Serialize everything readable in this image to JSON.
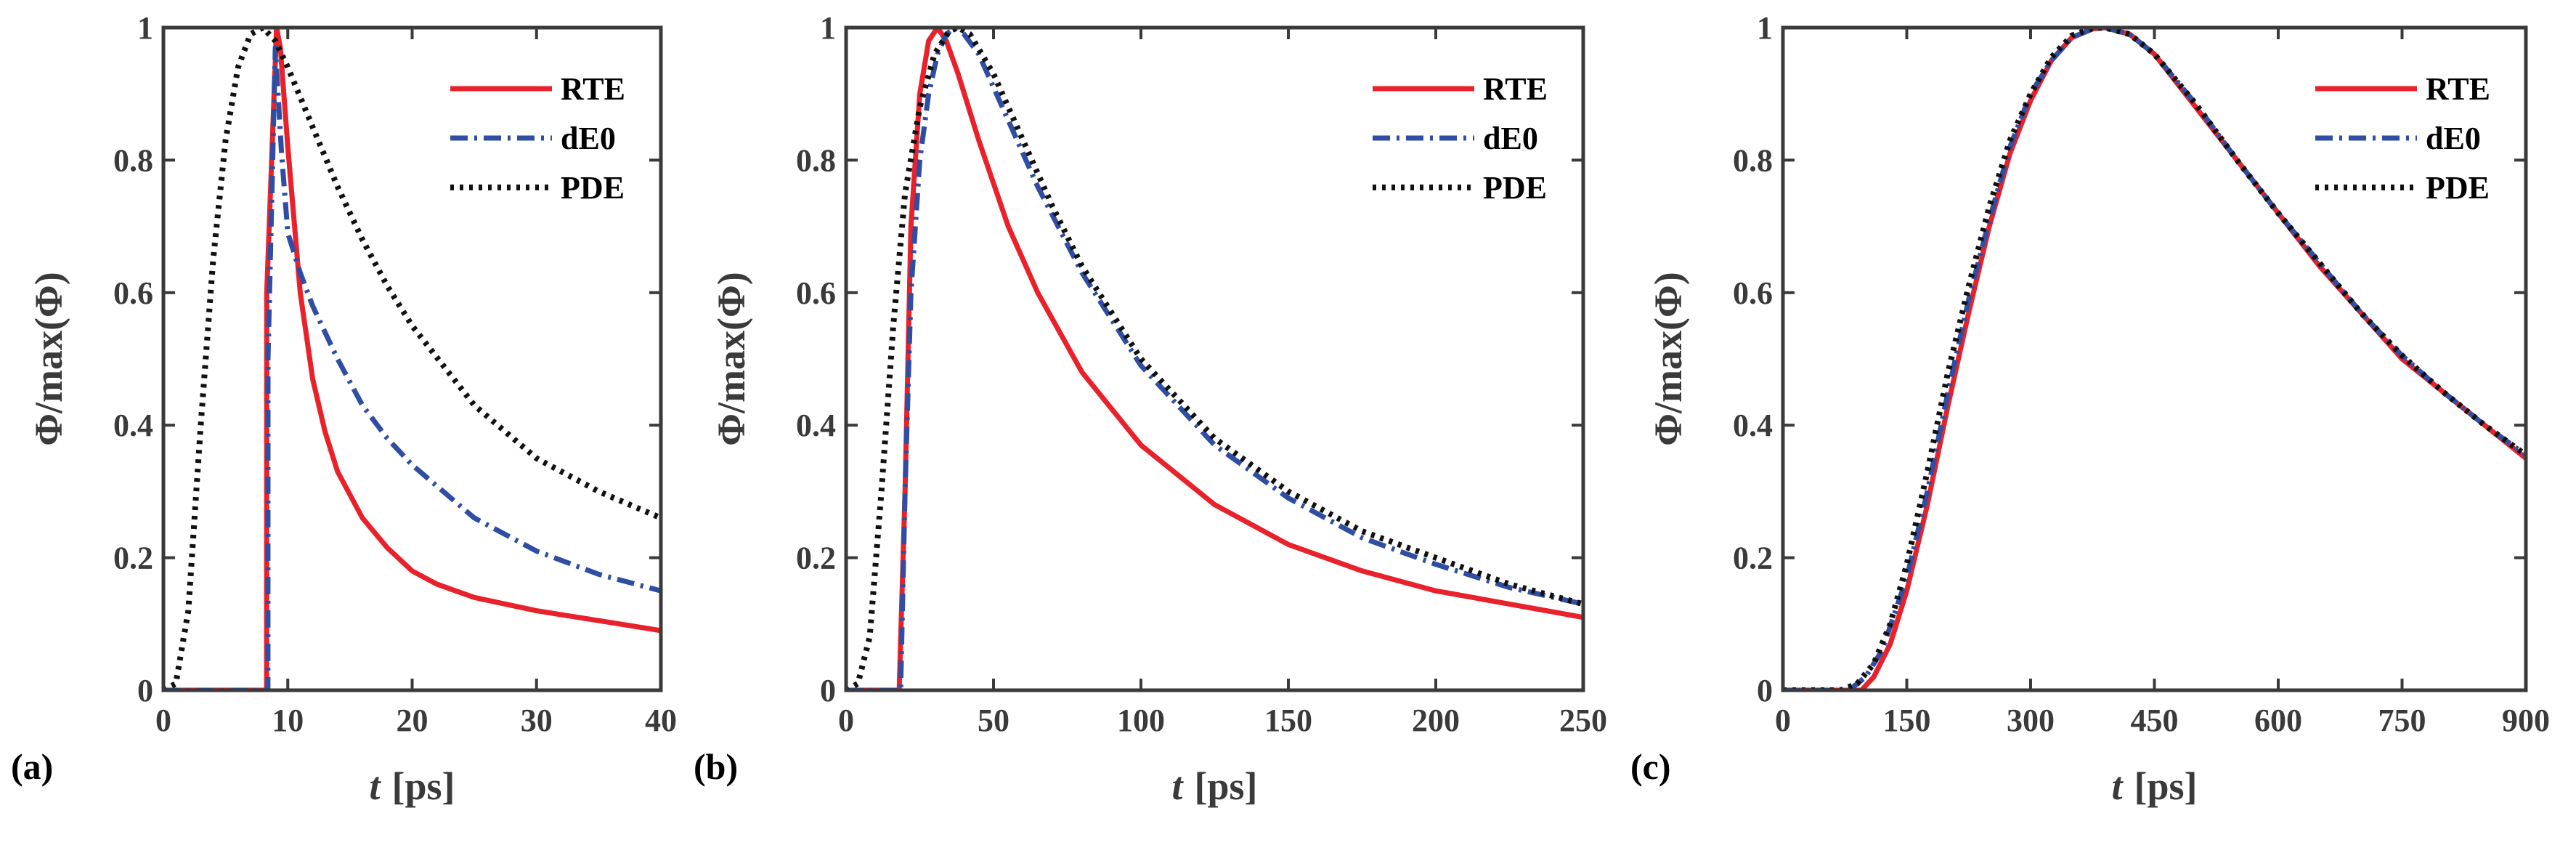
{
  "colors": {
    "RTE": "#e8212b",
    "dE0": "#2f4ea3",
    "PDE": "#111111",
    "axis": "#3a3a3a"
  },
  "chart_data": [
    {
      "type": "line",
      "panel_label": "(a)",
      "xlabel_var": "t",
      "xlabel_unit": "[ps]",
      "ylabel": "Φ/max(Φ)",
      "xlim": [
        0,
        40
      ],
      "ylim": [
        0,
        1
      ],
      "xticks": [
        0,
        10,
        20,
        30,
        40
      ],
      "yticks": [
        0,
        0.2,
        0.4,
        0.6,
        0.8,
        1
      ],
      "ytick_labels": [
        "0",
        "0.2",
        "0.4",
        "0.6",
        "0.8",
        "1"
      ],
      "legend_position": "top-right",
      "series": [
        {
          "name": "RTE",
          "style": "solid",
          "x": [
            0,
            8.3,
            8.31,
            9.1,
            9.4,
            10,
            11,
            12,
            13,
            14,
            16,
            18,
            20,
            22,
            25,
            30,
            35,
            40
          ],
          "y": [
            0,
            0,
            0.6,
            1.0,
            0.97,
            0.82,
            0.6,
            0.47,
            0.39,
            0.33,
            0.26,
            0.215,
            0.18,
            0.16,
            0.14,
            0.12,
            0.105,
            0.09
          ]
        },
        {
          "name": "dE0",
          "style": "dashdot",
          "x": [
            0,
            8.4,
            8.41,
            9.0,
            9.5,
            10,
            11,
            12,
            14,
            16,
            18,
            20,
            25,
            30,
            35,
            40
          ],
          "y": [
            0,
            0,
            0.5,
            0.97,
            0.81,
            0.69,
            0.63,
            0.58,
            0.5,
            0.43,
            0.38,
            0.34,
            0.26,
            0.21,
            0.175,
            0.15
          ]
        },
        {
          "name": "PDE",
          "style": "dotted",
          "x": [
            0,
            1,
            2,
            3,
            4,
            5,
            6,
            7,
            8,
            9,
            10,
            12,
            14,
            16,
            18,
            20,
            25,
            30,
            35,
            40
          ],
          "y": [
            0,
            0.01,
            0.12,
            0.4,
            0.65,
            0.83,
            0.94,
            0.99,
            1.0,
            0.98,
            0.94,
            0.85,
            0.76,
            0.68,
            0.61,
            0.55,
            0.43,
            0.35,
            0.3,
            0.26
          ]
        }
      ]
    },
    {
      "type": "line",
      "panel_label": "(b)",
      "xlabel_var": "t",
      "xlabel_unit": "[ps]",
      "ylabel": "Φ/max(Φ)",
      "xlim": [
        0,
        250
      ],
      "ylim": [
        0,
        1
      ],
      "xticks": [
        0,
        50,
        100,
        150,
        200,
        250
      ],
      "yticks": [
        0,
        0.2,
        0.4,
        0.6,
        0.8,
        1
      ],
      "ytick_labels": [
        "0",
        "0.2",
        "0.4",
        "0.6",
        "0.8",
        "1"
      ],
      "legend_position": "top-right",
      "series": [
        {
          "name": "RTE",
          "style": "solid",
          "x": [
            0,
            18,
            20,
            22,
            25,
            28,
            31,
            34,
            38,
            45,
            55,
            65,
            80,
            100,
            125,
            150,
            175,
            200,
            225,
            250
          ],
          "y": [
            0,
            0,
            0.3,
            0.7,
            0.9,
            0.98,
            1.0,
            0.98,
            0.93,
            0.83,
            0.7,
            0.6,
            0.48,
            0.37,
            0.28,
            0.22,
            0.18,
            0.15,
            0.13,
            0.11
          ]
        },
        {
          "name": "dE0",
          "style": "dashdot",
          "x": [
            0,
            18.5,
            20,
            22,
            25,
            28,
            31,
            34,
            37,
            40,
            45,
            55,
            65,
            80,
            100,
            125,
            150,
            175,
            200,
            225,
            250
          ],
          "y": [
            0,
            0,
            0.3,
            0.6,
            0.8,
            0.9,
            0.96,
            0.99,
            1.0,
            0.99,
            0.96,
            0.86,
            0.76,
            0.63,
            0.49,
            0.37,
            0.29,
            0.23,
            0.19,
            0.155,
            0.13
          ]
        },
        {
          "name": "PDE",
          "style": "dotted",
          "x": [
            0,
            4,
            8,
            12,
            16,
            20,
            25,
            30,
            35,
            38,
            42,
            50,
            60,
            70,
            80,
            100,
            125,
            150,
            175,
            200,
            225,
            250
          ],
          "y": [
            0,
            0.01,
            0.08,
            0.3,
            0.55,
            0.75,
            0.88,
            0.96,
            0.995,
            1.0,
            0.99,
            0.93,
            0.83,
            0.73,
            0.64,
            0.5,
            0.38,
            0.3,
            0.24,
            0.2,
            0.16,
            0.13
          ]
        }
      ]
    },
    {
      "type": "line",
      "panel_label": "(c)",
      "xlabel_var": "t",
      "xlabel_unit": "[ps]",
      "ylabel": "Φ/max(Φ)",
      "xlim": [
        0,
        900
      ],
      "ylim": [
        0,
        1
      ],
      "xticks": [
        0,
        150,
        300,
        450,
        600,
        750,
        900
      ],
      "yticks": [
        0,
        0.2,
        0.4,
        0.6,
        0.8,
        1
      ],
      "ytick_labels": [
        "0",
        "0.2",
        "0.4",
        "0.6",
        "0.8",
        "1"
      ],
      "legend_position": "top-right",
      "series": [
        {
          "name": "RTE",
          "style": "solid",
          "x": [
            0,
            95,
            110,
            130,
            150,
            175,
            200,
            225,
            250,
            275,
            300,
            325,
            350,
            375,
            390,
            420,
            450,
            500,
            550,
            600,
            650,
            700,
            750,
            800,
            850,
            900
          ],
          "y": [
            0,
            0,
            0.02,
            0.07,
            0.15,
            0.28,
            0.43,
            0.57,
            0.7,
            0.81,
            0.89,
            0.95,
            0.985,
            0.998,
            1.0,
            0.99,
            0.96,
            0.88,
            0.8,
            0.72,
            0.64,
            0.57,
            0.5,
            0.45,
            0.4,
            0.35
          ]
        },
        {
          "name": "dE0",
          "style": "dashdot",
          "x": [
            0,
            80,
            100,
            120,
            150,
            175,
            200,
            225,
            250,
            275,
            300,
            325,
            350,
            375,
            390,
            420,
            450,
            500,
            550,
            600,
            650,
            700,
            750,
            800,
            850,
            900
          ],
          "y": [
            0,
            0,
            0.02,
            0.06,
            0.17,
            0.3,
            0.45,
            0.59,
            0.71,
            0.82,
            0.9,
            0.95,
            0.985,
            0.998,
            1.0,
            0.99,
            0.96,
            0.885,
            0.8,
            0.72,
            0.645,
            0.57,
            0.505,
            0.45,
            0.4,
            0.355
          ]
        },
        {
          "name": "PDE",
          "style": "dotted",
          "x": [
            0,
            70,
            90,
            110,
            130,
            150,
            175,
            200,
            225,
            250,
            275,
            300,
            325,
            350,
            375,
            390,
            420,
            450,
            500,
            550,
            600,
            650,
            700,
            750,
            800,
            850,
            900
          ],
          "y": [
            0,
            0,
            0.01,
            0.04,
            0.1,
            0.19,
            0.33,
            0.48,
            0.61,
            0.73,
            0.83,
            0.9,
            0.955,
            0.988,
            0.999,
            1.0,
            0.99,
            0.96,
            0.885,
            0.8,
            0.72,
            0.645,
            0.57,
            0.505,
            0.45,
            0.4,
            0.355
          ]
        }
      ]
    }
  ]
}
